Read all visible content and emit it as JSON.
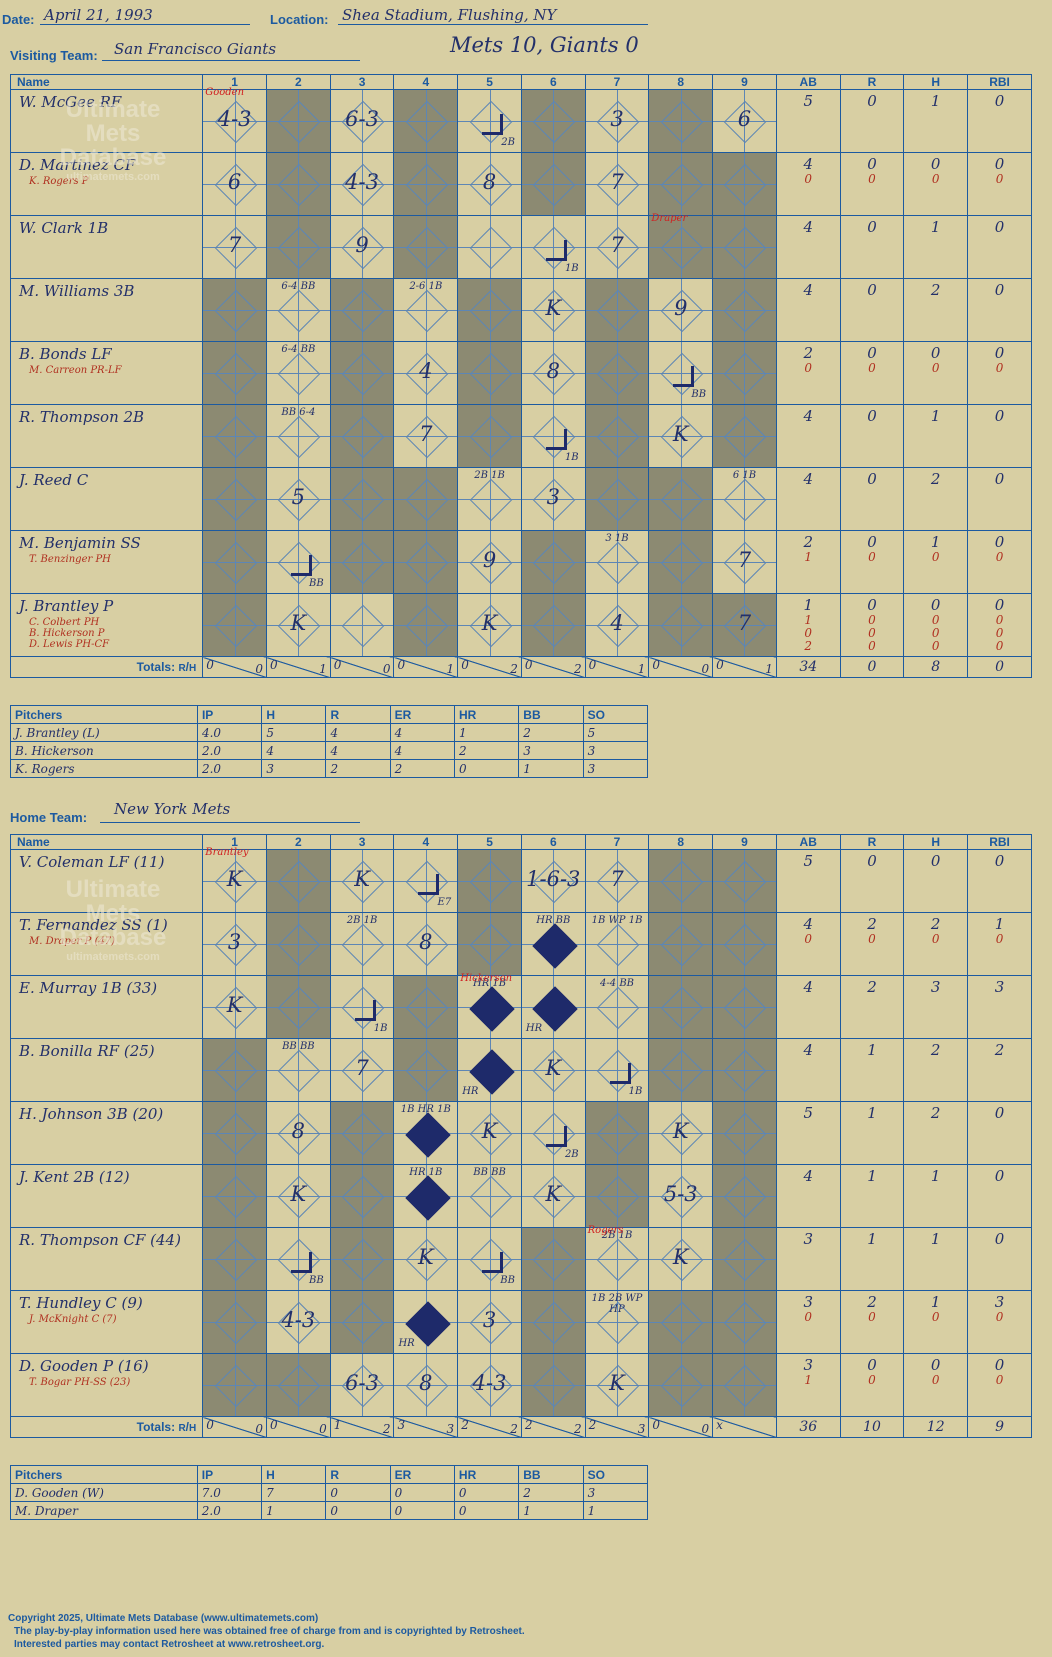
{
  "header": {
    "date_label": "Date:",
    "date_value": "April 21, 1993",
    "location_label": "Location:",
    "location_value": "Shea Stadium, Flushing, NY",
    "visiting_label": "Visiting Team:",
    "visiting_value": "San Francisco Giants",
    "result": "Mets 10, Giants 0",
    "home_label": "Home Team:",
    "home_value": "New York Mets"
  },
  "grid_headers": [
    "Name",
    "1",
    "2",
    "3",
    "4",
    "5",
    "6",
    "7",
    "8",
    "9",
    "AB",
    "R",
    "H",
    "RBI"
  ],
  "totals_label": "Totals:",
  "totals_r": "R",
  "totals_h": "H",
  "watermark": [
    "Ultimate",
    "Mets",
    "Database",
    "ultimatemets.com"
  ],
  "visitors": {
    "players": [
      {
        "name": "W. McGee RF",
        "subs": [],
        "ab": [
          "5"
        ],
        "r": [
          "0"
        ],
        "h": [
          "1"
        ],
        "rbi": [
          "0"
        ]
      },
      {
        "name": "D. Martinez CF",
        "subs": [
          "K. Rogers P"
        ],
        "ab": [
          "4",
          "0"
        ],
        "r": [
          "0",
          "0"
        ],
        "h": [
          "0",
          "0"
        ],
        "rbi": [
          "0",
          "0"
        ]
      },
      {
        "name": "W. Clark 1B",
        "subs": [],
        "ab": [
          "4"
        ],
        "r": [
          "0"
        ],
        "h": [
          "1"
        ],
        "rbi": [
          "0"
        ]
      },
      {
        "name": "M. Williams 3B",
        "subs": [],
        "ab": [
          "4"
        ],
        "r": [
          "0"
        ],
        "h": [
          "2"
        ],
        "rbi": [
          "0"
        ]
      },
      {
        "name": "B. Bonds LF",
        "subs": [
          "M. Carreon PR-LF"
        ],
        "ab": [
          "2",
          "0"
        ],
        "r": [
          "0",
          "0"
        ],
        "h": [
          "0",
          "0"
        ],
        "rbi": [
          "0",
          "0"
        ]
      },
      {
        "name": "R. Thompson 2B",
        "subs": [],
        "ab": [
          "4"
        ],
        "r": [
          "0"
        ],
        "h": [
          "1"
        ],
        "rbi": [
          "0"
        ]
      },
      {
        "name": "J. Reed C",
        "subs": [],
        "ab": [
          "4"
        ],
        "r": [
          "0"
        ],
        "h": [
          "2"
        ],
        "rbi": [
          "0"
        ]
      },
      {
        "name": "M. Benjamin SS",
        "subs": [
          "T. Benzinger PH"
        ],
        "ab": [
          "2",
          "1"
        ],
        "r": [
          "0",
          "0"
        ],
        "h": [
          "1",
          "0"
        ],
        "rbi": [
          "0",
          "0"
        ]
      },
      {
        "name": "J. Brantley P",
        "subs": [
          "C. Colbert PH",
          "B. Hickerson P",
          "D. Lewis PH-CF"
        ],
        "ab": [
          "1",
          "1",
          "0",
          "2"
        ],
        "r": [
          "0",
          "0",
          "0",
          "0"
        ],
        "h": [
          "0",
          "0",
          "0",
          "0"
        ],
        "rbi": [
          "0",
          "0",
          "0",
          "0"
        ]
      }
    ],
    "plays": [
      [
        "4-3",
        "",
        "6-3",
        "",
        "2B",
        "",
        "3",
        "",
        "6"
      ],
      [
        "6",
        "",
        "4-3",
        "",
        "8",
        "",
        "7",
        "",
        ""
      ],
      [
        "7",
        "",
        "9",
        "",
        "",
        "1B",
        "7",
        "",
        ""
      ],
      [
        "",
        "6-4 BB",
        "",
        "2-6 1B",
        "",
        "K",
        "",
        "9",
        ""
      ],
      [
        "",
        "6-4 BB",
        "",
        "4",
        "",
        "8",
        "",
        "BB",
        ""
      ],
      [
        "",
        "BB 6-4",
        "",
        "7",
        "",
        "1B",
        "",
        "K",
        ""
      ],
      [
        "",
        "5",
        "",
        "",
        "2B 1B",
        "3",
        "",
        "",
        "6 1B"
      ],
      [
        "",
        "BB",
        "",
        "",
        "9",
        "",
        "3 1B",
        "",
        "7"
      ],
      [
        "",
        "K",
        "",
        "",
        "K",
        "",
        "4",
        "",
        "7"
      ]
    ],
    "pitcher_notes": {
      "row0": "Gooden",
      "row2": "Draper"
    },
    "totals": [
      [
        "0",
        "0"
      ],
      [
        "0",
        "1"
      ],
      [
        "0",
        "0"
      ],
      [
        "0",
        "1"
      ],
      [
        "0",
        "2"
      ],
      [
        "0",
        "2"
      ],
      [
        "0",
        "1"
      ],
      [
        "0",
        "0"
      ],
      [
        "0",
        "1"
      ]
    ],
    "totals_stats": [
      "34",
      "0",
      "8",
      "0"
    ]
  },
  "visitor_pitchers": {
    "headers": [
      "Pitchers",
      "IP",
      "H",
      "R",
      "ER",
      "HR",
      "BB",
      "SO"
    ],
    "rows": [
      [
        "J. Brantley (L)",
        "4.0",
        "5",
        "4",
        "4",
        "1",
        "2",
        "5"
      ],
      [
        "B. Hickerson",
        "2.0",
        "4",
        "4",
        "4",
        "2",
        "3",
        "3"
      ],
      [
        "K. Rogers",
        "2.0",
        "3",
        "2",
        "2",
        "0",
        "1",
        "3"
      ]
    ]
  },
  "home": {
    "players": [
      {
        "name": "V. Coleman LF (11)",
        "subs": [],
        "ab": [
          "5"
        ],
        "r": [
          "0"
        ],
        "h": [
          "0"
        ],
        "rbi": [
          "0"
        ]
      },
      {
        "name": "T. Fernandez SS (1)",
        "subs": [
          "M. Draper P (47)"
        ],
        "ab": [
          "4",
          "0"
        ],
        "r": [
          "2",
          "0"
        ],
        "h": [
          "2",
          "0"
        ],
        "rbi": [
          "1",
          "0"
        ]
      },
      {
        "name": "E. Murray 1B (33)",
        "subs": [],
        "ab": [
          "4"
        ],
        "r": [
          "2"
        ],
        "h": [
          "3"
        ],
        "rbi": [
          "3"
        ]
      },
      {
        "name": "B. Bonilla RF (25)",
        "subs": [],
        "ab": [
          "4"
        ],
        "r": [
          "1"
        ],
        "h": [
          "2"
        ],
        "rbi": [
          "2"
        ]
      },
      {
        "name": "H. Johnson 3B (20)",
        "subs": [],
        "ab": [
          "5"
        ],
        "r": [
          "1"
        ],
        "h": [
          "2"
        ],
        "rbi": [
          "0"
        ]
      },
      {
        "name": "J. Kent 2B (12)",
        "subs": [],
        "ab": [
          "4"
        ],
        "r": [
          "1"
        ],
        "h": [
          "1"
        ],
        "rbi": [
          "0"
        ]
      },
      {
        "name": "R. Thompson CF (44)",
        "subs": [],
        "ab": [
          "3"
        ],
        "r": [
          "1"
        ],
        "h": [
          "1"
        ],
        "rbi": [
          "0"
        ]
      },
      {
        "name": "T. Hundley C (9)",
        "subs": [
          "J. McKnight C (7)"
        ],
        "ab": [
          "3",
          "0"
        ],
        "r": [
          "2",
          "0"
        ],
        "h": [
          "1",
          "0"
        ],
        "rbi": [
          "3",
          "0"
        ]
      },
      {
        "name": "D. Gooden P (16)",
        "subs": [
          "T. Bogar PH-SS (23)"
        ],
        "ab": [
          "3",
          "1"
        ],
        "r": [
          "0",
          "0"
        ],
        "h": [
          "0",
          "0"
        ],
        "rbi": [
          "0",
          "0"
        ]
      }
    ],
    "plays": [
      [
        "K",
        "",
        "K",
        "E7",
        "",
        "1-6-3",
        "7",
        "",
        ""
      ],
      [
        "3",
        "",
        "2B 1B",
        "8",
        "",
        "HR BB",
        "1B WP 1B",
        "",
        ""
      ],
      [
        "K",
        "",
        "1B",
        "",
        "HR 1B",
        "HR",
        "4-4 BB",
        "",
        ""
      ],
      [
        "",
        "BB BB",
        "7",
        "",
        "HR",
        "K",
        "1B",
        "",
        ""
      ],
      [
        "",
        "8",
        "",
        "1B HR 1B",
        "K",
        "2B",
        "",
        "K",
        ""
      ],
      [
        "",
        "K",
        "",
        "HR 1B",
        "BB BB",
        "K",
        "",
        "5-3",
        ""
      ],
      [
        "",
        "BB",
        "",
        "K",
        "BB",
        "",
        "2B 1B",
        "K",
        ""
      ],
      [
        "",
        "4-3",
        "",
        "HR",
        "3",
        "",
        "1B 2B WP HP",
        "",
        ""
      ],
      [
        "",
        "",
        "6-3",
        "8",
        "4-3",
        "",
        "K",
        "",
        ""
      ]
    ],
    "pitcher_notes": {
      "row0": "Brantley",
      "row2": "Hickerson",
      "row6": "Rogers"
    },
    "totals": [
      [
        "0",
        "0"
      ],
      [
        "0",
        "0"
      ],
      [
        "1",
        "2"
      ],
      [
        "3",
        "3"
      ],
      [
        "2",
        "2"
      ],
      [
        "2",
        "2"
      ],
      [
        "2",
        "3"
      ],
      [
        "0",
        "0"
      ],
      [
        "x",
        ""
      ]
    ],
    "totals_stats": [
      "36",
      "10",
      "12",
      "9"
    ]
  },
  "home_pitchers": {
    "headers": [
      "Pitchers",
      "IP",
      "H",
      "R",
      "ER",
      "HR",
      "BB",
      "SO"
    ],
    "rows": [
      [
        "D. Gooden (W)",
        "7.0",
        "7",
        "0",
        "0",
        "0",
        "2",
        "3"
      ],
      [
        "M. Draper",
        "2.0",
        "1",
        "0",
        "0",
        "0",
        "1",
        "1"
      ]
    ]
  },
  "footer": {
    "line1": "Copyright 2025, Ultimate Mets Database (www.ultimatemets.com)",
    "line2": "The play-by-play information used here was obtained free of charge from and is copyrighted by Retrosheet.",
    "line3": "Interested parties may contact Retrosheet at www.retrosheet.org."
  },
  "colors": {
    "background": "#d8cfa3",
    "grid": "#1c5aa0",
    "shade": "#8c8a72",
    "ink": "#23306a",
    "red_ink": "#d02020"
  }
}
